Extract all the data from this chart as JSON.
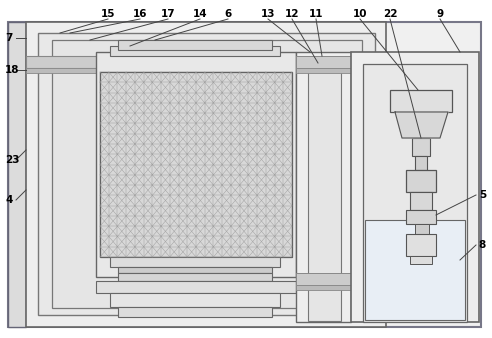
{
  "bg_color": "#ffffff",
  "lc": "#555555",
  "fig_width": 4.92,
  "fig_height": 3.38,
  "dpi": 100
}
